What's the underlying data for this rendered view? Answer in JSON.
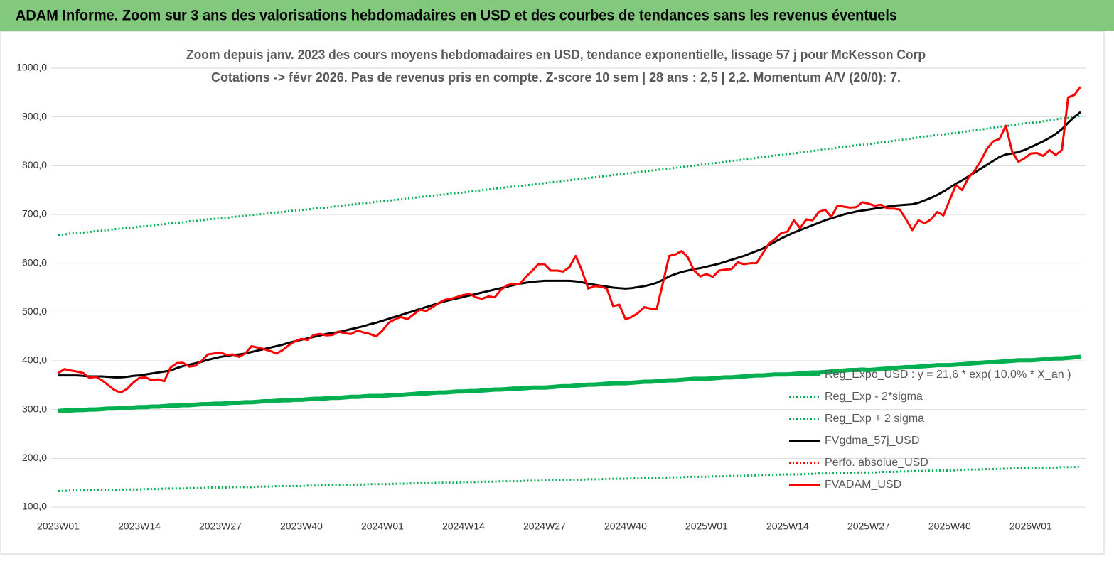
{
  "header": {
    "title": "ADAM Informe. Zoom sur 3 ans des valorisations hebdomadaires en USD et des courbes de tendances sans les revenus éventuels"
  },
  "chart_data": {
    "type": "line",
    "title": [
      "Zoom depuis janv. 2023 des cours moyens hebdomadaires en USD, tendance exponentielle, lissage 57 j pour McKesson Corp",
      "Cotations -> févr 2026. Pas de revenus pris en compte. Z-score 10 sem | 28 ans : 2,5 | 2,2. Momentum A/V (20/0): 7."
    ],
    "ylim": [
      100,
      1000
    ],
    "yticks": [
      {
        "value": 100,
        "label": "100,0"
      },
      {
        "value": 200,
        "label": "200,0"
      },
      {
        "value": 300,
        "label": "300,0"
      },
      {
        "value": 400,
        "label": "400,0"
      },
      {
        "value": 500,
        "label": "500,0"
      },
      {
        "value": 600,
        "label": "600,0"
      },
      {
        "value": 700,
        "label": "700,0"
      },
      {
        "value": 800,
        "label": "800,0"
      },
      {
        "value": 900,
        "label": "900,0"
      },
      {
        "value": 1000,
        "label": "1000,0"
      }
    ],
    "grid": true,
    "legend": "bottom-right",
    "categories": [
      "2023W01",
      null,
      null,
      null,
      null,
      null,
      null,
      null,
      null,
      null,
      null,
      null,
      null,
      "2023W14",
      null,
      null,
      null,
      null,
      null,
      null,
      null,
      null,
      null,
      null,
      null,
      null,
      "2023W27",
      null,
      null,
      null,
      null,
      null,
      null,
      null,
      null,
      null,
      null,
      null,
      null,
      "2023W40",
      null,
      null,
      null,
      null,
      null,
      null,
      null,
      null,
      null,
      null,
      null,
      null,
      "2024W01",
      null,
      null,
      null,
      null,
      null,
      null,
      null,
      null,
      null,
      null,
      null,
      null,
      "2024W14",
      null,
      null,
      null,
      null,
      null,
      null,
      null,
      null,
      null,
      null,
      null,
      null,
      "2024W27",
      null,
      null,
      null,
      null,
      null,
      null,
      null,
      null,
      null,
      null,
      null,
      null,
      "2024W40",
      null,
      null,
      null,
      null,
      null,
      null,
      null,
      null,
      null,
      null,
      null,
      null,
      "2025W01",
      null,
      null,
      null,
      null,
      null,
      null,
      null,
      null,
      null,
      null,
      null,
      null,
      "2025W14",
      null,
      null,
      null,
      null,
      null,
      null,
      null,
      null,
      null,
      null,
      null,
      null,
      "2025W27",
      null,
      null,
      null,
      null,
      null,
      null,
      null,
      null,
      null,
      null,
      null,
      null,
      "2025W40",
      null,
      null,
      null,
      null,
      null,
      null,
      null,
      null,
      null,
      null,
      null,
      null,
      "2026W01",
      null,
      null,
      null,
      null,
      null,
      null,
      null,
      null
    ],
    "series": [
      {
        "name": "Reg_Expo_USD : y = 21,6 * exp( 10,0% * X_an )",
        "color": "#00b050",
        "style": "thick",
        "values": [
          297,
          298,
          298,
          299,
          299,
          300,
          300,
          301,
          302,
          302,
          303,
          303,
          304,
          305,
          305,
          306,
          306,
          307,
          308,
          308,
          309,
          309,
          310,
          311,
          311,
          312,
          312,
          313,
          314,
          314,
          315,
          315,
          316,
          317,
          317,
          318,
          319,
          319,
          320,
          320,
          321,
          322,
          322,
          323,
          324,
          324,
          325,
          326,
          326,
          327,
          328,
          328,
          328,
          329,
          330,
          330,
          331,
          332,
          333,
          333,
          334,
          335,
          335,
          336,
          337,
          337,
          338,
          338,
          339,
          340,
          341,
          341,
          342,
          343,
          343,
          344,
          345,
          345,
          345,
          346,
          347,
          348,
          348,
          349,
          350,
          351,
          351,
          352,
          353,
          354,
          354,
          354,
          355,
          356,
          357,
          357,
          358,
          359,
          360,
          360,
          361,
          362,
          363,
          363,
          363,
          364,
          365,
          366,
          366,
          367,
          368,
          369,
          370,
          370,
          371,
          372,
          372,
          372,
          373,
          374,
          375,
          376,
          376,
          377,
          378,
          379,
          380,
          381,
          381,
          382,
          381,
          382,
          383,
          384,
          385,
          386,
          387,
          387,
          388,
          389,
          390,
          391,
          391,
          391,
          392,
          393,
          394,
          395,
          396,
          397,
          397,
          398,
          399,
          400,
          401,
          401,
          401,
          402,
          403,
          404,
          405,
          405,
          406,
          407,
          408
        ]
      },
      {
        "name": "Reg_Exp - 2*sigma",
        "color": "#00b050",
        "style": "dotted",
        "values": [
          133,
          133,
          134,
          134,
          134,
          134,
          135,
          135,
          135,
          135,
          136,
          136,
          136,
          136,
          137,
          137,
          137,
          138,
          138,
          138,
          138,
          139,
          139,
          139,
          140,
          140,
          140,
          140,
          141,
          141,
          141,
          141,
          142,
          142,
          142,
          143,
          143,
          143,
          143,
          143,
          144,
          144,
          144,
          145,
          145,
          145,
          145,
          146,
          146,
          146,
          147,
          147,
          147,
          147,
          148,
          148,
          148,
          149,
          149,
          149,
          149,
          150,
          150,
          150,
          150,
          151,
          151,
          151,
          152,
          152,
          152,
          153,
          153,
          153,
          153,
          154,
          154,
          154,
          155,
          155,
          155,
          155,
          156,
          156,
          156,
          157,
          157,
          157,
          158,
          158,
          158,
          158,
          159,
          159,
          159,
          160,
          160,
          160,
          161,
          161,
          161,
          162,
          162,
          162,
          162,
          163,
          163,
          163,
          164,
          164,
          164,
          165,
          165,
          166,
          166,
          166,
          167,
          167,
          167,
          167,
          168,
          168,
          169,
          169,
          169,
          170,
          170,
          170,
          171,
          171,
          171,
          171,
          172,
          172,
          172,
          173,
          173,
          174,
          174,
          174,
          175,
          175,
          175,
          175,
          176,
          176,
          177,
          177,
          177,
          178,
          178,
          178,
          179,
          179,
          180,
          180,
          180,
          180,
          181,
          181,
          181,
          182,
          182,
          182,
          183
        ]
      },
      {
        "name": "Reg_Exp + 2 sigma",
        "color": "#00b050",
        "style": "dotted",
        "values": [
          658,
          659,
          661,
          662,
          663,
          664,
          666,
          667,
          668,
          670,
          671,
          672,
          673,
          675,
          676,
          677,
          679,
          680,
          682,
          683,
          684,
          686,
          687,
          688,
          690,
          691,
          692,
          693,
          695,
          696,
          697,
          699,
          700,
          701,
          703,
          704,
          705,
          707,
          708,
          709,
          710,
          712,
          713,
          714,
          716,
          717,
          719,
          720,
          722,
          723,
          724,
          726,
          727,
          728,
          730,
          731,
          733,
          734,
          736,
          737,
          738,
          740,
          741,
          743,
          744,
          745,
          747,
          748,
          750,
          751,
          753,
          754,
          756,
          757,
          758,
          760,
          761,
          763,
          764,
          766,
          767,
          769,
          770,
          772,
          773,
          775,
          776,
          778,
          779,
          781,
          782,
          784,
          785,
          787,
          788,
          790,
          791,
          793,
          794,
          796,
          797,
          799,
          800,
          802,
          803,
          805,
          806,
          808,
          810,
          811,
          813,
          814,
          816,
          818,
          819,
          821,
          822,
          824,
          825,
          827,
          829,
          830,
          832,
          834,
          835,
          837,
          839,
          840,
          842,
          843,
          844,
          846,
          848,
          849,
          851,
          853,
          854,
          856,
          858,
          860,
          861,
          863,
          864,
          866,
          867,
          869,
          871,
          873,
          874,
          876,
          878,
          880,
          881,
          883,
          885,
          887,
          888,
          889,
          891,
          893,
          895,
          897,
          898,
          900,
          902
        ]
      },
      {
        "name": "FVgdma_57j_USD",
        "color": "#000000",
        "style": "solid",
        "values": [
          370,
          370,
          370,
          370,
          369,
          368,
          368,
          368,
          367,
          366,
          366,
          367,
          369,
          370,
          372,
          374,
          376,
          378,
          380,
          385,
          389,
          392,
          395,
          398,
          402,
          405,
          408,
          410,
          412,
          413,
          415,
          418,
          421,
          424,
          427,
          430,
          433,
          437,
          440,
          443,
          446,
          449,
          452,
          455,
          457,
          459,
          462,
          465,
          468,
          471,
          475,
          478,
          482,
          486,
          490,
          494,
          498,
          502,
          506,
          510,
          514,
          518,
          522,
          525,
          528,
          531,
          534,
          537,
          540,
          543,
          546,
          549,
          552,
          555,
          558,
          560,
          562,
          563,
          564,
          564,
          564,
          564,
          564,
          563,
          561,
          558,
          556,
          554,
          552,
          550,
          549,
          548,
          549,
          551,
          553,
          556,
          560,
          566,
          573,
          578,
          582,
          585,
          588,
          590,
          593,
          596,
          599,
          603,
          607,
          611,
          615,
          620,
          625,
          630,
          637,
          644,
          651,
          657,
          663,
          668,
          673,
          678,
          683,
          688,
          692,
          696,
          700,
          703,
          706,
          708,
          710,
          712,
          714,
          716,
          718,
          719,
          720,
          721,
          724,
          729,
          734,
          740,
          747,
          755,
          763,
          770,
          778,
          786,
          794,
          802,
          810,
          818,
          823,
          825,
          828,
          832,
          838,
          844,
          850,
          857,
          865,
          875,
          888,
          900,
          910
        ]
      },
      {
        "name": "Perfo. absolue_USD",
        "color": "#ff0000",
        "style": "dotted",
        "values": [
          null,
          null,
          null,
          null,
          null,
          null,
          null,
          null,
          null,
          null,
          null,
          null,
          null,
          null,
          null,
          null,
          null,
          null,
          null,
          null,
          null,
          null,
          null,
          null,
          null,
          null,
          null,
          null,
          null,
          null,
          null,
          null,
          null,
          null,
          null,
          null,
          null,
          null,
          null,
          null,
          null,
          null,
          null,
          null,
          null,
          null,
          null,
          null,
          null,
          null,
          null,
          null,
          null,
          null,
          null,
          null,
          null,
          null,
          null,
          null,
          null,
          null,
          null,
          null,
          null,
          null,
          null,
          null,
          null,
          null,
          null,
          null,
          null,
          null,
          null,
          null,
          null,
          null,
          null,
          null,
          null,
          null,
          null,
          null,
          null,
          null,
          null,
          null,
          null,
          null,
          null,
          null,
          null,
          null,
          null,
          null,
          null,
          null,
          null,
          null,
          null,
          null,
          null,
          null,
          null,
          null,
          null,
          null,
          null,
          null,
          null,
          null,
          null,
          null,
          null,
          null,
          null,
          null,
          null,
          null,
          null,
          null,
          null,
          null,
          null,
          null,
          null,
          null,
          null,
          null,
          null,
          null,
          null,
          null,
          null,
          null,
          null,
          null,
          null,
          null,
          null,
          null,
          null,
          null,
          null,
          null,
          null,
          null,
          null,
          null,
          null,
          null,
          null,
          null,
          null,
          null,
          null,
          null,
          null,
          null,
          null,
          null,
          null,
          null,
          null
        ]
      },
      {
        "name": "FVADAM_USD",
        "color": "#ff0000",
        "style": "solid",
        "values": [
          375,
          383,
          380,
          378,
          375,
          365,
          367,
          360,
          350,
          340,
          335,
          342,
          355,
          365,
          366,
          360,
          362,
          358,
          386,
          395,
          396,
          388,
          390,
          400,
          413,
          415,
          417,
          412,
          413,
          408,
          415,
          430,
          427,
          424,
          420,
          415,
          422,
          432,
          440,
          445,
          443,
          453,
          455,
          452,
          453,
          460,
          456,
          455,
          462,
          458,
          455,
          450,
          462,
          478,
          485,
          490,
          485,
          495,
          505,
          502,
          510,
          518,
          525,
          527,
          531,
          535,
          537,
          530,
          527,
          532,
          530,
          545,
          555,
          558,
          557,
          572,
          584,
          598,
          598,
          585,
          585,
          583,
          592,
          615,
          585,
          548,
          553,
          552,
          548,
          512,
          515,
          485,
          490,
          498,
          510,
          507,
          506,
          560,
          615,
          618,
          625,
          612,
          585,
          573,
          578,
          572,
          585,
          587,
          588,
          602,
          598,
          600,
          600,
          620,
          640,
          650,
          662,
          665,
          688,
          672,
          690,
          688,
          705,
          710,
          695,
          718,
          716,
          714,
          715,
          725,
          722,
          718,
          720,
          712,
          712,
          710,
          690,
          668,
          688,
          682,
          690,
          705,
          698,
          730,
          760,
          750,
          775,
          790,
          810,
          835,
          850,
          855,
          882,
          830,
          808,
          815,
          825,
          826,
          820,
          832,
          822,
          832,
          940,
          945,
          962
        ]
      }
    ]
  }
}
